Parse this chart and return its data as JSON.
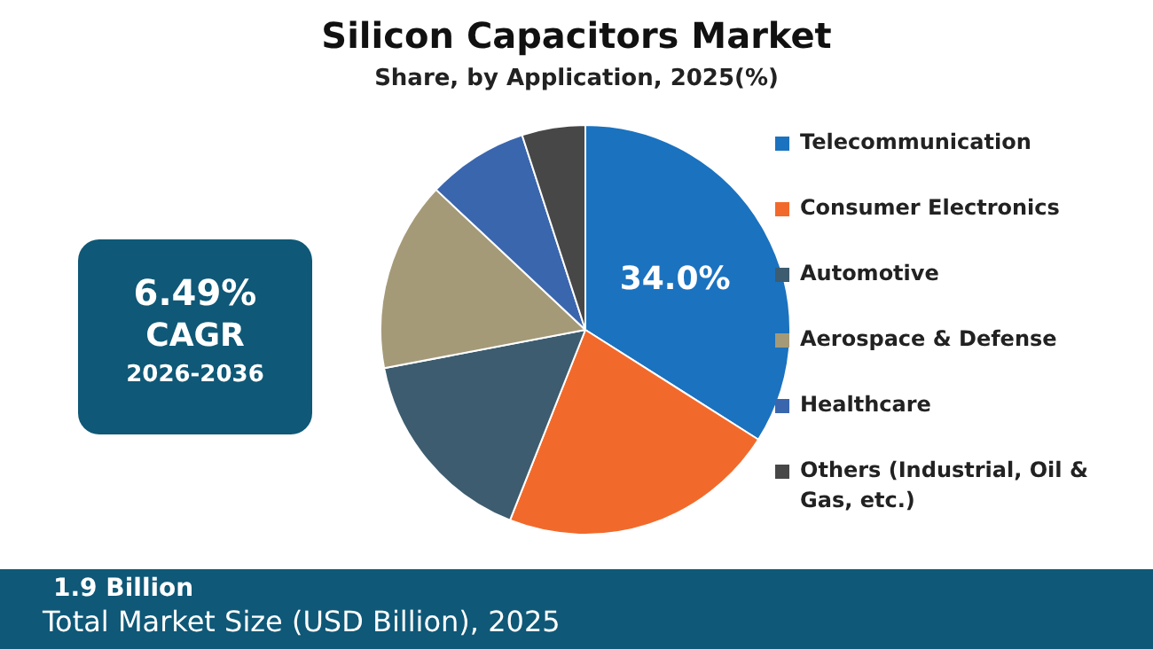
{
  "chart_data": {
    "type": "pie",
    "title": "Silicon Capacitors Market",
    "subtitle": "Share, by Application, 2025(%)",
    "categories": [
      "Telecommunication",
      "Consumer Electronics",
      "Automotive",
      "Aerospace & Defense",
      "Healthcare",
      "Others (Industrial, Oil & Gas, etc.)"
    ],
    "values": [
      34,
      22,
      16,
      15,
      8,
      5
    ],
    "value_labels": [
      "34.0%",
      null,
      null,
      null,
      null,
      null
    ],
    "colors": [
      "#1b72bf",
      "#f26a2b",
      "#3d5c6f",
      "#a59a78",
      "#3a66ae",
      "#474747"
    ],
    "legend": "right",
    "annotations": [
      "6.49%",
      "CAGR",
      "2026-2036",
      "1.9 Billion",
      "Total Market Size (USD Billion), 2025"
    ]
  }
}
